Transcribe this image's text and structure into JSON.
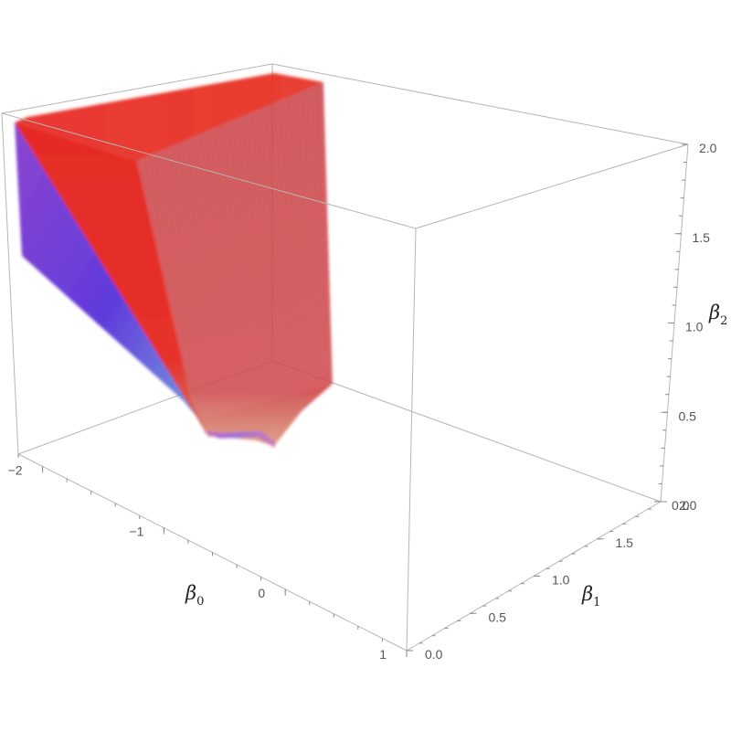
{
  "chart_data": {
    "type": "3d-region",
    "title": "",
    "axes": {
      "x": {
        "label_base": "β",
        "label_sub": "0",
        "range": [
          -2.2,
          1
        ],
        "ticks": [
          -2,
          -1,
          0,
          1
        ],
        "tick_labels": [
          "−2",
          "−1",
          "0",
          "1"
        ]
      },
      "y": {
        "label_base": "β",
        "label_sub": "1",
        "range": [
          0,
          2
        ],
        "ticks": [
          0,
          0.5,
          1,
          1.5,
          2
        ],
        "tick_labels": [
          "0.0",
          "0.5",
          "1.0",
          "1.5",
          "2.0"
        ]
      },
      "z": {
        "label_base": "β",
        "label_sub": "2",
        "range": [
          0,
          2
        ],
        "ticks": [
          0,
          0.5,
          1,
          1.5,
          2
        ],
        "tick_labels": [
          "0.0",
          "0.5",
          "1.0",
          "1.5",
          "2.0"
        ]
      }
    },
    "grid": false,
    "box": true,
    "colors": {
      "high": "#e8221c",
      "side_face": "#c8323c",
      "low": "#3a1fd8",
      "edge_low": "#5a3cd2"
    }
  }
}
